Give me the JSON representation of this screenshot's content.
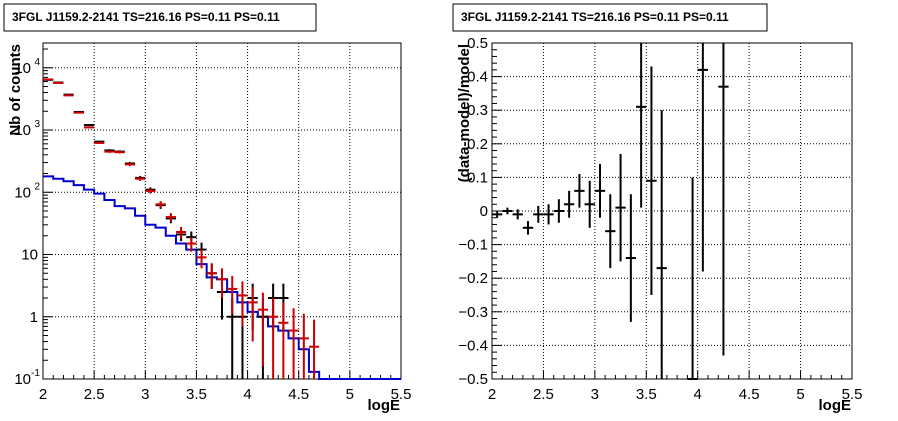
{
  "chart_data": [
    {
      "type": "line",
      "title": "3FGL J1159.2-2141 TS=216.16 PS=0.11 PS=0.11",
      "xlabel": "logE",
      "ylabel": "Nb of counts",
      "xlim": [
        2,
        5.5
      ],
      "ylim": [
        0.1,
        25000
      ],
      "yscale": "log",
      "grid": true,
      "x_ticks": [
        "2",
        "2.5",
        "3",
        "3.5",
        "4",
        "4.5",
        "5",
        "5.5"
      ],
      "y_ticks": [
        {
          "label": "10",
          "exp": "-1",
          "value": 0.1
        },
        {
          "label": "1",
          "exp": "",
          "value": 1
        },
        {
          "label": "10",
          "exp": "",
          "value": 10
        },
        {
          "label": "10",
          "exp": "2",
          "value": 100
        },
        {
          "label": "10",
          "exp": "3",
          "value": 1000
        },
        {
          "label": "10",
          "exp": "4",
          "value": 10000
        }
      ],
      "bin_edges": [
        2.0,
        2.1,
        2.2,
        2.3,
        2.4,
        2.5,
        2.6,
        2.7,
        2.8,
        2.9,
        3.0,
        3.1,
        3.2,
        3.3,
        3.4,
        3.5,
        3.6,
        3.7,
        3.8,
        3.9,
        4.0,
        4.1,
        4.2,
        4.3,
        4.4,
        4.5,
        4.6,
        4.7,
        4.8,
        4.9,
        5.0,
        5.1,
        5.2,
        5.3,
        5.4,
        5.5
      ],
      "series": [
        {
          "kind": "data",
          "color": "#000000",
          "x": [
            2.05,
            2.15,
            2.25,
            2.35,
            2.45,
            2.55,
            2.65,
            2.75,
            2.85,
            2.95,
            3.05,
            3.15,
            3.25,
            3.35,
            3.45,
            3.55,
            3.65,
            3.75,
            3.85,
            3.95,
            4.05,
            4.15,
            4.25,
            4.35
          ],
          "y": [
            6400,
            5800,
            3700,
            1950,
            1200,
            650,
            470,
            450,
            290,
            170,
            110,
            62,
            38,
            21,
            19,
            12,
            5,
            2.5,
            1,
            1,
            2,
            1,
            2,
            2
          ],
          "err": [
            80,
            76,
            61,
            44,
            35,
            25,
            22,
            21,
            17,
            13,
            10,
            7.9,
            6.2,
            4.6,
            4.4,
            3.5,
            2.2,
            1.6,
            1,
            1,
            1.4,
            1,
            1.4,
            1.4
          ]
        },
        {
          "kind": "model",
          "color": "#cc0000",
          "x": [
            2.05,
            2.15,
            2.25,
            2.35,
            2.45,
            2.55,
            2.65,
            2.75,
            2.85,
            2.95,
            3.05,
            3.15,
            3.25,
            3.35,
            3.45,
            3.55,
            3.65,
            3.75,
            3.85,
            3.95,
            4.05,
            4.15,
            4.25,
            4.35,
            4.45,
            4.55,
            4.65
          ],
          "y": [
            6500,
            5700,
            3600,
            1900,
            1100,
            620,
            450,
            440,
            280,
            165,
            105,
            64,
            40,
            23,
            15,
            9,
            5,
            4,
            2.8,
            2.2,
            1.7,
            1.3,
            1,
            0.8,
            0.6,
            0.45,
            0.33
          ],
          "err": [
            80,
            75,
            60,
            44,
            33,
            25,
            21,
            21,
            17,
            13,
            10,
            8,
            6.3,
            4.8,
            3.9,
            3,
            2.2,
            2,
            1.7,
            1.5,
            1.3,
            1.14,
            1,
            0.9,
            0.77,
            0.67,
            0.57
          ]
        },
        {
          "kind": "background",
          "color": "#0000cc",
          "step_y": [
            180,
            165,
            150,
            130,
            110,
            95,
            75,
            60,
            55,
            42,
            30,
            27,
            20,
            15,
            12,
            7,
            4.3,
            4,
            2.5,
            1.7,
            1.2,
            1,
            0.7,
            0.6,
            0.45,
            0.3,
            0.13,
            0.1,
            0.1,
            0.1,
            0.1,
            0.1,
            0.1,
            0.1,
            0.1
          ]
        }
      ]
    },
    {
      "type": "scatter",
      "title": "3FGL J1159.2-2141 TS=216.16 PS=0.11 PS=0.11",
      "xlabel": "logE",
      "ylabel": "(data-model)/model",
      "xlim": [
        2,
        5.5
      ],
      "ylim": [
        -0.5,
        0.5
      ],
      "grid": true,
      "x_ticks": [
        "2",
        "2.5",
        "3",
        "3.5",
        "4",
        "4.5",
        "5",
        "5.5"
      ],
      "y_ticks": [
        "−0.5",
        "−0.4",
        "−0.3",
        "−0.2",
        "−0.1",
        "0",
        "0.1",
        "0.2",
        "0.3",
        "0.4",
        "0.5"
      ],
      "series": [
        {
          "kind": "residual",
          "color": "#000000",
          "x": [
            2.05,
            2.15,
            2.25,
            2.35,
            2.45,
            2.55,
            2.65,
            2.75,
            2.85,
            2.95,
            3.05,
            3.15,
            3.25,
            3.35,
            3.45,
            3.55,
            3.65,
            3.95,
            4.05,
            4.25
          ],
          "y": [
            -0.01,
            0.0,
            -0.01,
            -0.05,
            -0.01,
            -0.01,
            0.0,
            0.02,
            0.06,
            0.02,
            0.06,
            -0.06,
            0.01,
            -0.14,
            0.31,
            0.09,
            -0.17,
            -0.5,
            0.42,
            0.37
          ],
          "err": [
            0.01,
            0.01,
            0.015,
            0.02,
            0.025,
            0.03,
            0.035,
            0.04,
            0.05,
            0.07,
            0.08,
            0.11,
            0.16,
            0.19,
            0.3,
            0.34,
            0.47,
            0.6,
            0.6,
            0.8
          ]
        }
      ]
    }
  ]
}
